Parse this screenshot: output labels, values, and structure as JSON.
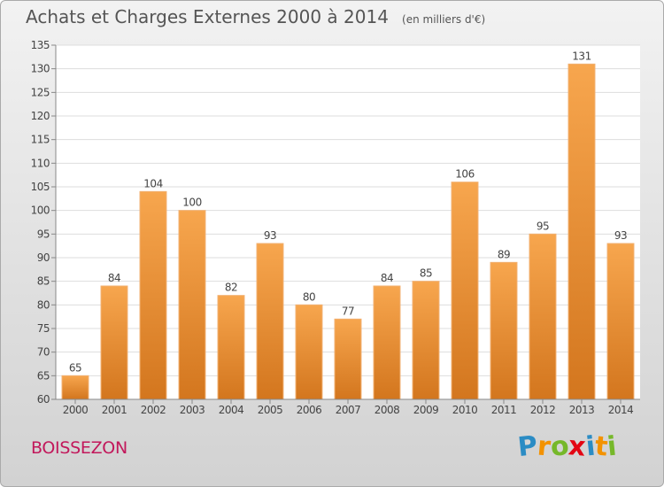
{
  "page": {
    "title": "Achats et Charges Externes 2000 à 2014",
    "subtitle": "(en milliers d'€)",
    "commune": "BOISSEZON",
    "brand": {
      "letters": [
        "P",
        "r",
        "o",
        "x",
        "i",
        "t",
        "i"
      ],
      "colors": [
        "#2b8cc4",
        "#f39200",
        "#76b82a",
        "#e30613",
        "#2b8cc4",
        "#f39200",
        "#76b82a"
      ]
    }
  },
  "chart_data": {
    "type": "bar",
    "categories": [
      "2000",
      "2001",
      "2002",
      "2003",
      "2004",
      "2005",
      "2006",
      "2007",
      "2008",
      "2009",
      "2010",
      "2011",
      "2012",
      "2013",
      "2014"
    ],
    "values": [
      65,
      84,
      104,
      100,
      82,
      93,
      80,
      77,
      84,
      85,
      106,
      89,
      95,
      131,
      93
    ],
    "title": "Achats et Charges Externes 2000 à 2014",
    "subtitle": "(en milliers d'€)",
    "xlabel": "",
    "ylabel": "",
    "ylim": [
      60,
      135
    ],
    "yticks": [
      60,
      65,
      70,
      75,
      80,
      85,
      90,
      95,
      100,
      105,
      110,
      115,
      120,
      125,
      130,
      135
    ],
    "grid": true,
    "bar_color_top": "#f7a64e",
    "bar_color_bottom": "#d3761e"
  }
}
